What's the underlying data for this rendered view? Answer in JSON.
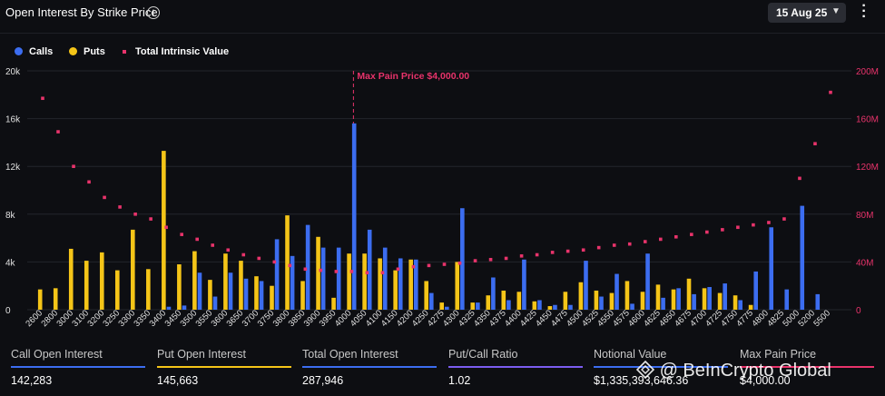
{
  "header": {
    "title": "Open Interest By Strike Price",
    "date_label": "15 Aug 25"
  },
  "legend": {
    "calls": "Calls",
    "puts": "Puts",
    "tiv": "Total Intrinsic Value"
  },
  "colors": {
    "calls": "#3c6df0",
    "puts": "#f5c518",
    "tiv": "#e8336b"
  },
  "annotation": "Max Pain Price $4,000.00",
  "chart_data": {
    "type": "bar",
    "categories": [
      "2600",
      "2800",
      "3000",
      "3100",
      "3200",
      "3250",
      "3300",
      "3350",
      "3400",
      "3450",
      "3500",
      "3550",
      "3600",
      "3650",
      "3700",
      "3750",
      "3800",
      "3850",
      "3900",
      "3950",
      "4000",
      "4050",
      "4100",
      "4150",
      "4200",
      "4250",
      "4275",
      "4300",
      "4325",
      "4350",
      "4375",
      "4400",
      "4425",
      "4450",
      "4475",
      "4500",
      "4525",
      "4550",
      "4575",
      "4600",
      "4625",
      "4650",
      "4675",
      "4700",
      "4725",
      "4750",
      "4775",
      "4800",
      "4825",
      "5000",
      "5200",
      "5500"
    ],
    "series": [
      {
        "name": "Calls",
        "axis": "left",
        "values": [
          0,
          0,
          0,
          0,
          0,
          0,
          0,
          0,
          250,
          350,
          3100,
          1100,
          3100,
          2600,
          2400,
          5900,
          4500,
          7100,
          5200,
          5200,
          15600,
          6700,
          5200,
          4300,
          4200,
          1400,
          250,
          8500,
          600,
          2700,
          800,
          4200,
          800,
          400,
          400,
          4100,
          1100,
          3000,
          500,
          4700,
          1000,
          1800,
          1300,
          1900,
          2200,
          800,
          3200,
          6900,
          1700,
          8700,
          1300,
          0
        ]
      },
      {
        "name": "Puts",
        "axis": "left",
        "values": [
          1700,
          1800,
          5100,
          4100,
          4800,
          3300,
          6700,
          3400,
          13300,
          3800,
          4900,
          2500,
          4700,
          4100,
          2800,
          2000,
          7900,
          2400,
          6100,
          1000,
          4700,
          4700,
          4300,
          3300,
          4200,
          2400,
          600,
          4000,
          600,
          1200,
          1600,
          1500,
          700,
          300,
          1500,
          2300,
          1600,
          1400,
          2400,
          1500,
          2100,
          1700,
          2600,
          1800,
          1400,
          1200,
          400,
          0,
          0,
          0,
          0,
          0
        ]
      },
      {
        "name": "Total Intrinsic Value",
        "axis": "right",
        "type": "scatter",
        "values": [
          177000000,
          149000000,
          120000000,
          107000000,
          94000000,
          86000000,
          80000000,
          76000000,
          69000000,
          63000000,
          59000000,
          54000000,
          50000000,
          46000000,
          43000000,
          40000000,
          37000000,
          34000000,
          33000000,
          32000000,
          32000000,
          31000000,
          31000000,
          34000000,
          36000000,
          37000000,
          38000000,
          39000000,
          41000000,
          42000000,
          43000000,
          45000000,
          46000000,
          48000000,
          49000000,
          50000000,
          52000000,
          54000000,
          55000000,
          57000000,
          59000000,
          61000000,
          63000000,
          65000000,
          67000000,
          69000000,
          71000000,
          73000000,
          76000000,
          110000000,
          139000000,
          182000000
        ]
      }
    ],
    "ylim_left": [
      0,
      20000
    ],
    "ylim_right": [
      0,
      200000000
    ],
    "yticks_left": [
      "0",
      "4k",
      "8k",
      "12k",
      "16k",
      "20k"
    ],
    "yticks_right": [
      "0",
      "40M",
      "80M",
      "120M",
      "160M",
      "200M"
    ],
    "max_pain_category": "4000",
    "grid": true,
    "legend_position": "top-left"
  },
  "stats": [
    {
      "label": "Call Open Interest",
      "value": "142,283",
      "color": "#3c6df0"
    },
    {
      "label": "Put Open Interest",
      "value": "145,663",
      "color": "#f5c518"
    },
    {
      "label": "Total Open Interest",
      "value": "287,946",
      "color": "#3c6df0"
    },
    {
      "label": "Put/Call Ratio",
      "value": "1.02",
      "color": "#7b5cf0"
    },
    {
      "label": "Notional Value",
      "value": "$1,335,393,646.36",
      "color": "#3c6df0"
    },
    {
      "label": "Max Pain Price",
      "value": "$4,000.00",
      "color": "#e8336b"
    }
  ],
  "watermark": "@ BeInCrypto Global"
}
